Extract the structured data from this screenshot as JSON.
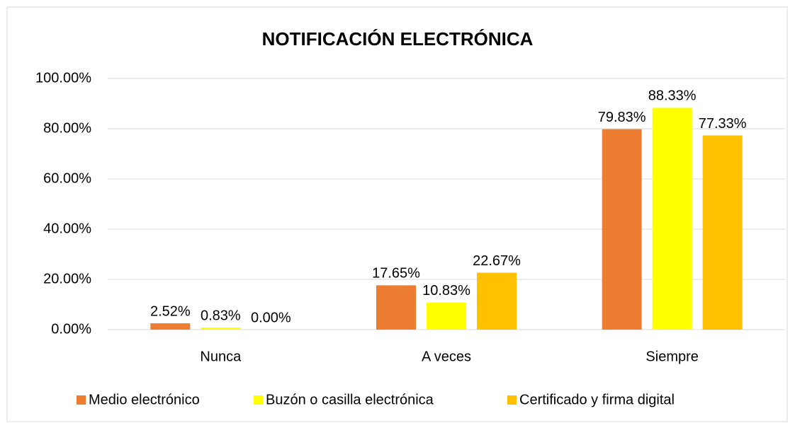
{
  "chart_data": {
    "type": "bar",
    "title": "NOTIFICACIÓN ELECTRÓNICA",
    "categories": [
      "Nunca",
      "A veces",
      "Siempre"
    ],
    "series": [
      {
        "name": "Medio electrónico",
        "color": "#ed7d31",
        "values": [
          2.52,
          17.65,
          79.83
        ],
        "value_labels": [
          "2.52%",
          "17.65%",
          "79.83%"
        ]
      },
      {
        "name": "Buzón o casilla electrónica",
        "color": "#ffff00",
        "values": [
          0.83,
          10.83,
          88.33
        ],
        "value_labels": [
          "0.83%",
          "10.83%",
          "88.33%"
        ]
      },
      {
        "name": "Certificado y firma digital",
        "color": "#ffc000",
        "values": [
          0,
          22.67,
          77.33
        ],
        "value_labels": [
          "0.00%",
          "22.67%",
          "77.33%"
        ]
      }
    ],
    "ylim": [
      0,
      100
    ],
    "yticks": [
      {
        "value": 0,
        "label": "0.00%"
      },
      {
        "value": 20,
        "label": "20.00%"
      },
      {
        "value": 40,
        "label": "40.00%"
      },
      {
        "value": 60,
        "label": "60.00%"
      },
      {
        "value": 80,
        "label": "80.00%"
      },
      {
        "value": 100,
        "label": "100.00%"
      }
    ],
    "grid": true,
    "legend": "bottom"
  }
}
